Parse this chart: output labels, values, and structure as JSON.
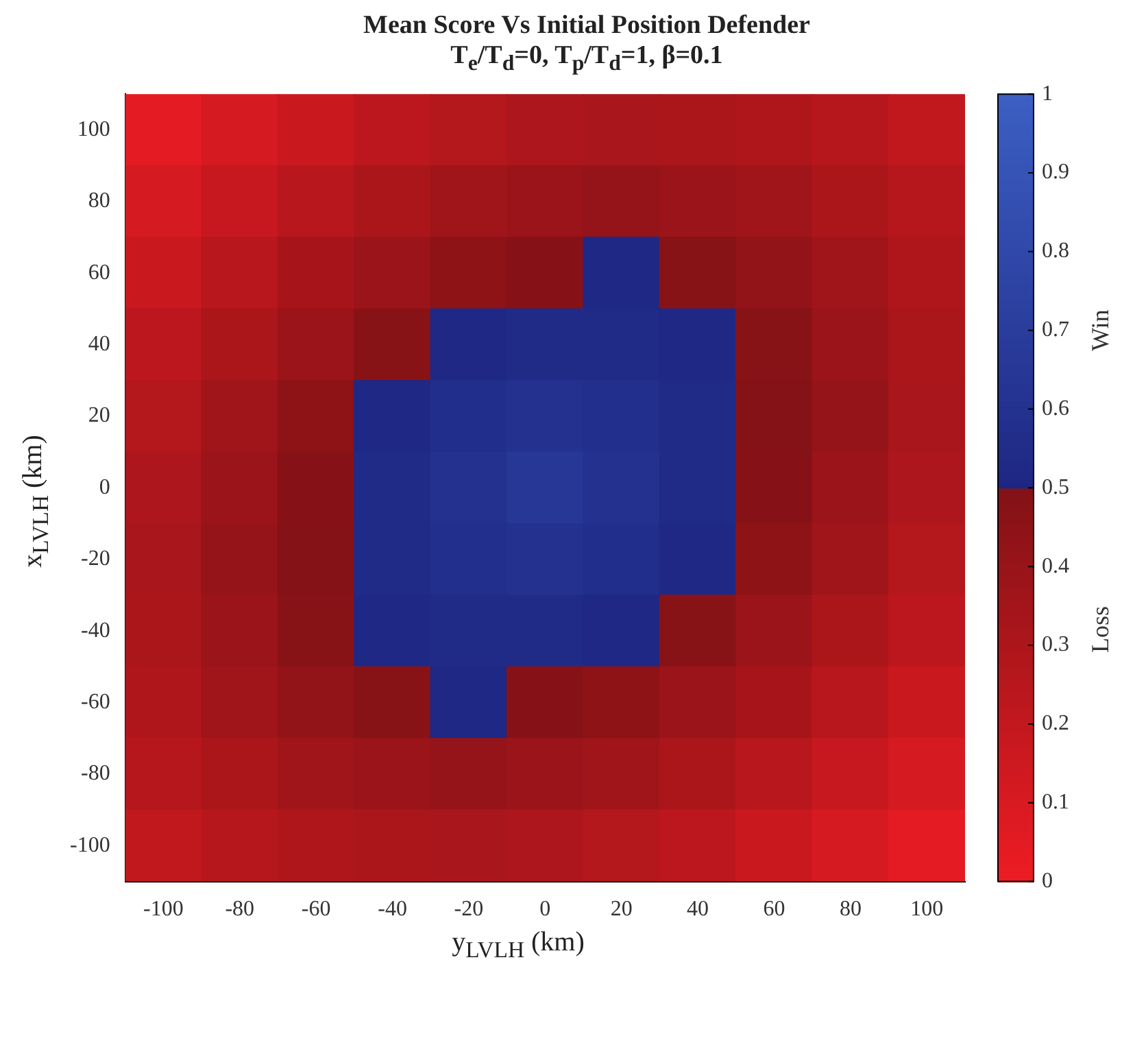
{
  "chart_data": {
    "type": "heatmap",
    "title": "Mean Score Vs Initial Position Defender",
    "subtitle": "T$_{e}$/T$_{d}$=0, T$_{p}$/T$_{d}$=1, β=0.1",
    "xlabel": "y$_{LVLH}$ (km)",
    "ylabel": "x$_{LVLH}$ (km)",
    "annotations": [
      "Win",
      "Loss"
    ],
    "categories": [
      "-100",
      "-80",
      "-60",
      "-40",
      "-20",
      "0",
      "20",
      "40",
      "60",
      "80",
      "100"
    ],
    "y_categories": [
      "100",
      "80",
      "60",
      "40",
      "20",
      "0",
      "-20",
      "-40",
      "-60",
      "-80",
      "-100"
    ],
    "cells": [
      [
        0.04,
        0.11,
        0.17,
        0.23,
        0.27,
        0.3,
        0.32,
        0.31,
        0.29,
        0.26,
        0.21
      ],
      [
        0.11,
        0.18,
        0.25,
        0.31,
        0.36,
        0.39,
        0.41,
        0.39,
        0.36,
        0.31,
        0.26
      ],
      [
        0.17,
        0.25,
        0.33,
        0.39,
        0.45,
        0.48,
        0.52,
        0.47,
        0.42,
        0.36,
        0.29
      ],
      [
        0.23,
        0.31,
        0.39,
        0.47,
        0.52,
        0.54,
        0.54,
        0.52,
        0.47,
        0.39,
        0.31
      ],
      [
        0.27,
        0.36,
        0.45,
        0.52,
        0.57,
        0.6,
        0.58,
        0.54,
        0.49,
        0.41,
        0.32
      ],
      [
        0.3,
        0.39,
        0.48,
        0.54,
        0.6,
        0.65,
        0.6,
        0.54,
        0.48,
        0.39,
        0.3
      ],
      [
        0.32,
        0.41,
        0.49,
        0.54,
        0.58,
        0.6,
        0.57,
        0.52,
        0.45,
        0.36,
        0.27
      ],
      [
        0.31,
        0.39,
        0.47,
        0.52,
        0.54,
        0.54,
        0.52,
        0.47,
        0.39,
        0.31,
        0.23
      ],
      [
        0.29,
        0.36,
        0.42,
        0.47,
        0.52,
        0.48,
        0.45,
        0.39,
        0.33,
        0.25,
        0.17
      ],
      [
        0.26,
        0.31,
        0.36,
        0.39,
        0.41,
        0.39,
        0.36,
        0.31,
        0.25,
        0.18,
        0.11
      ],
      [
        0.21,
        0.26,
        0.29,
        0.31,
        0.32,
        0.3,
        0.27,
        0.23,
        0.17,
        0.11,
        0.04
      ]
    ],
    "clim": [
      0,
      1
    ],
    "cticks": [
      0,
      0.1,
      0.2,
      0.3,
      0.4,
      0.5,
      0.6,
      0.7,
      0.8,
      0.9,
      1
    ]
  }
}
